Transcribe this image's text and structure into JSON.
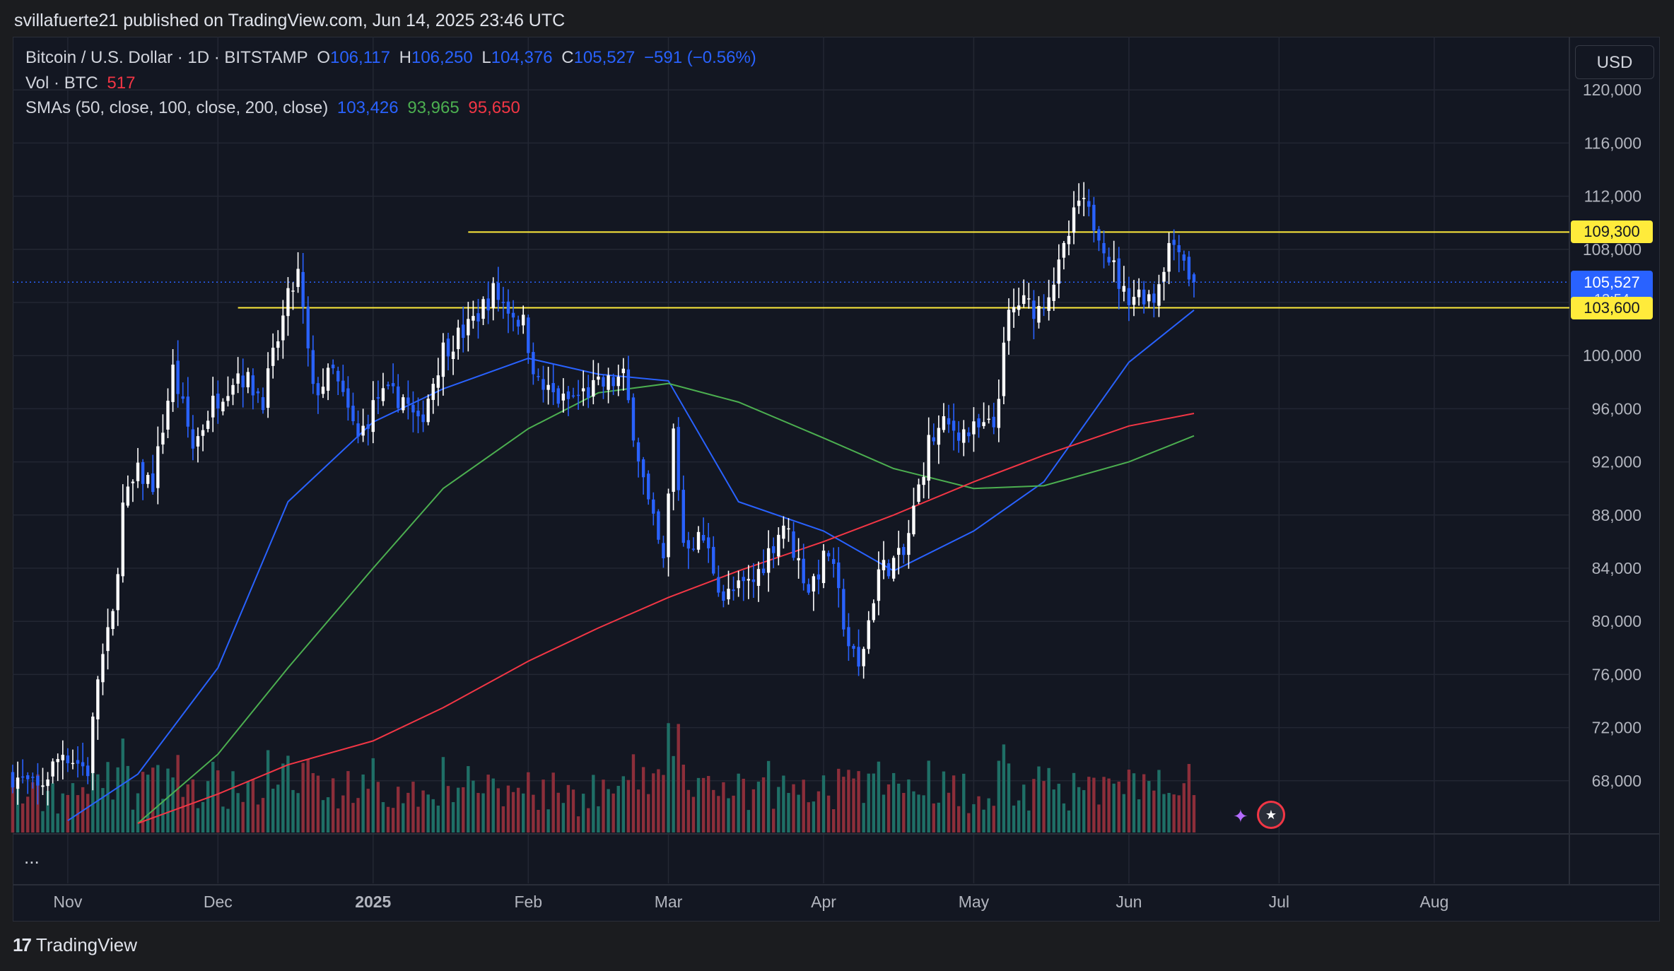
{
  "header": {
    "published_text": "svillafuerte21 published on TradingView.com, Jun 14, 2025 23:46 UTC"
  },
  "legend": {
    "symbol": "Bitcoin / U.S. Dollar · 1D · BITSTAMP",
    "o_label": "O",
    "o_value": "106,117",
    "h_label": "H",
    "h_value": "106,250",
    "l_label": "L",
    "l_value": "104,376",
    "c_label": "C",
    "c_value": "105,527",
    "change": "−591 (−0.56%)",
    "vol_label": "Vol · BTC",
    "vol_value": "517",
    "sma_label": "SMAs (50, close, 100, close, 200, close)",
    "sma50_value": "103,426",
    "sma100_value": "93,965",
    "sma200_value": "95,650"
  },
  "currency_button": "USD",
  "tags": {
    "resistance": "109,300",
    "support": "103,600",
    "current_price": "105,527",
    "countdown": "13:54"
  },
  "more_button": "...",
  "footer": {
    "brand": "TradingView",
    "logo_glyph": "17"
  },
  "colors": {
    "background": "#131722",
    "up_candle": "#ffffff",
    "down_candle": "#2962ff",
    "sma50": "#2962ff",
    "sma100": "#4caf50",
    "sma200": "#f23645",
    "level_lines": "#ffeb3b",
    "volume_up": "#1f6f66",
    "volume_down": "#8c2e3a"
  },
  "chart_data": {
    "type": "candlestick",
    "symbol": "Bitcoin / U.S. Dollar",
    "interval": "1D",
    "exchange": "BITSTAMP",
    "currency": "USD",
    "y_ticks": [
      68000,
      72000,
      76000,
      80000,
      84000,
      88000,
      92000,
      96000,
      100000,
      104000,
      108000,
      112000,
      116000,
      120000
    ],
    "y_tick_labels": [
      "68,000",
      "72,000",
      "76,000",
      "80,000",
      "84,000",
      "88,000",
      "92,000",
      "96,000",
      "100,000",
      "104,000",
      "108,000",
      "112,000",
      "116,000",
      "120,000"
    ],
    "ylim": [
      64000,
      124000
    ],
    "x_labels": [
      "Nov",
      "Dec",
      "2025",
      "Feb",
      "Mar",
      "Apr",
      "May",
      "Jun",
      "Jul",
      "Aug"
    ],
    "x_label_dates": [
      "2024-11-01",
      "2024-12-01",
      "2025-01-01",
      "2025-02-01",
      "2025-03-01",
      "2025-04-01",
      "2025-05-01",
      "2025-06-01",
      "2025-07-01",
      "2025-08-01"
    ],
    "date_range": [
      "2024-10-21",
      "2025-08-28"
    ],
    "horizontal_levels": [
      {
        "value": 109300,
        "label": "109,300",
        "start_date": "2025-01-20"
      },
      {
        "value": 103600,
        "label": "103,600",
        "start_date": "2024-12-05"
      }
    ],
    "current_price": 105527,
    "last_candle": {
      "date": "2025-06-14",
      "open": 106117,
      "high": 106250,
      "low": 104376,
      "close": 105527,
      "volume_btc": 517
    },
    "close_series": {
      "dates": [
        "2024-10-21",
        "2024-10-26",
        "2024-10-31",
        "2024-11-05",
        "2024-11-07",
        "2024-11-10",
        "2024-11-12",
        "2024-11-15",
        "2024-11-18",
        "2024-11-22",
        "2024-11-26",
        "2024-11-30",
        "2024-12-05",
        "2024-12-10",
        "2024-12-15",
        "2024-12-17",
        "2024-12-20",
        "2024-12-24",
        "2024-12-29",
        "2025-01-02",
        "2025-01-07",
        "2025-01-10",
        "2025-01-15",
        "2025-01-20",
        "2025-01-25",
        "2025-01-31",
        "2025-02-03",
        "2025-02-08",
        "2025-02-14",
        "2025-02-20",
        "2025-02-25",
        "2025-02-28",
        "2025-03-02",
        "2025-03-04",
        "2025-03-08",
        "2025-03-12",
        "2025-03-18",
        "2025-03-24",
        "2025-03-29",
        "2025-04-02",
        "2025-04-06",
        "2025-04-08",
        "2025-04-12",
        "2025-04-17",
        "2025-04-22",
        "2025-04-25",
        "2025-04-30",
        "2025-05-05",
        "2025-05-08",
        "2025-05-10",
        "2025-05-14",
        "2025-05-18",
        "2025-05-22",
        "2025-05-26",
        "2025-05-31",
        "2025-06-04",
        "2025-06-06",
        "2025-06-09",
        "2025-06-11",
        "2025-06-13",
        "2025-06-14"
      ],
      "values": [
        68400,
        67300,
        70200,
        68800,
        75800,
        80300,
        88600,
        91100,
        90400,
        98900,
        93100,
        96400,
        98800,
        96800,
        104200,
        106100,
        97200,
        98700,
        93700,
        96900,
        96900,
        94600,
        100500,
        102100,
        104800,
        102400,
        97800,
        96500,
        97500,
        98300,
        88700,
        84300,
        94300,
        86000,
        86200,
        81800,
        83000,
        87400,
        82500,
        85200,
        78300,
        76300,
        83800,
        84900,
        93400,
        94700,
        94200,
        94700,
        103000,
        104000,
        103500,
        106500,
        111600,
        109500,
        104600,
        104700,
        104400,
        108300,
        108600,
        106117,
        105527
      ]
    },
    "series": [
      {
        "name": "SMA 50",
        "x": [
          "2024-11-01",
          "2024-11-15",
          "2024-12-01",
          "2024-12-15",
          "2025-01-01",
          "2025-01-15",
          "2025-02-01",
          "2025-02-15",
          "2025-03-01",
          "2025-03-15",
          "2025-04-01",
          "2025-04-15",
          "2025-05-01",
          "2025-05-15",
          "2025-06-01",
          "2025-06-14"
        ],
        "values": [
          65000,
          68500,
          76500,
          89000,
          95000,
          97500,
          99800,
          98600,
          98100,
          89000,
          86800,
          83800,
          86800,
          90500,
          99500,
          103426
        ]
      },
      {
        "name": "SMA 100",
        "x": [
          "2024-11-15",
          "2024-12-01",
          "2024-12-15",
          "2025-01-01",
          "2025-01-15",
          "2025-02-01",
          "2025-02-15",
          "2025-03-01",
          "2025-03-15",
          "2025-04-01",
          "2025-04-15",
          "2025-05-01",
          "2025-05-15",
          "2025-06-01",
          "2025-06-14"
        ],
        "values": [
          64800,
          70000,
          76500,
          84000,
          90000,
          94500,
          97200,
          97900,
          96500,
          93800,
          91500,
          90000,
          90200,
          92000,
          93965
        ]
      },
      {
        "name": "SMA 200",
        "x": [
          "2024-11-15",
          "2024-12-01",
          "2024-12-15",
          "2025-01-01",
          "2025-01-15",
          "2025-02-01",
          "2025-02-15",
          "2025-03-01",
          "2025-03-15",
          "2025-04-01",
          "2025-04-15",
          "2025-05-01",
          "2025-05-15",
          "2025-06-01",
          "2025-06-14"
        ],
        "values": [
          64800,
          67000,
          69200,
          71000,
          73500,
          77000,
          79500,
          81800,
          83800,
          86000,
          88000,
          90500,
          92500,
          94700,
          95650
        ]
      }
    ]
  }
}
